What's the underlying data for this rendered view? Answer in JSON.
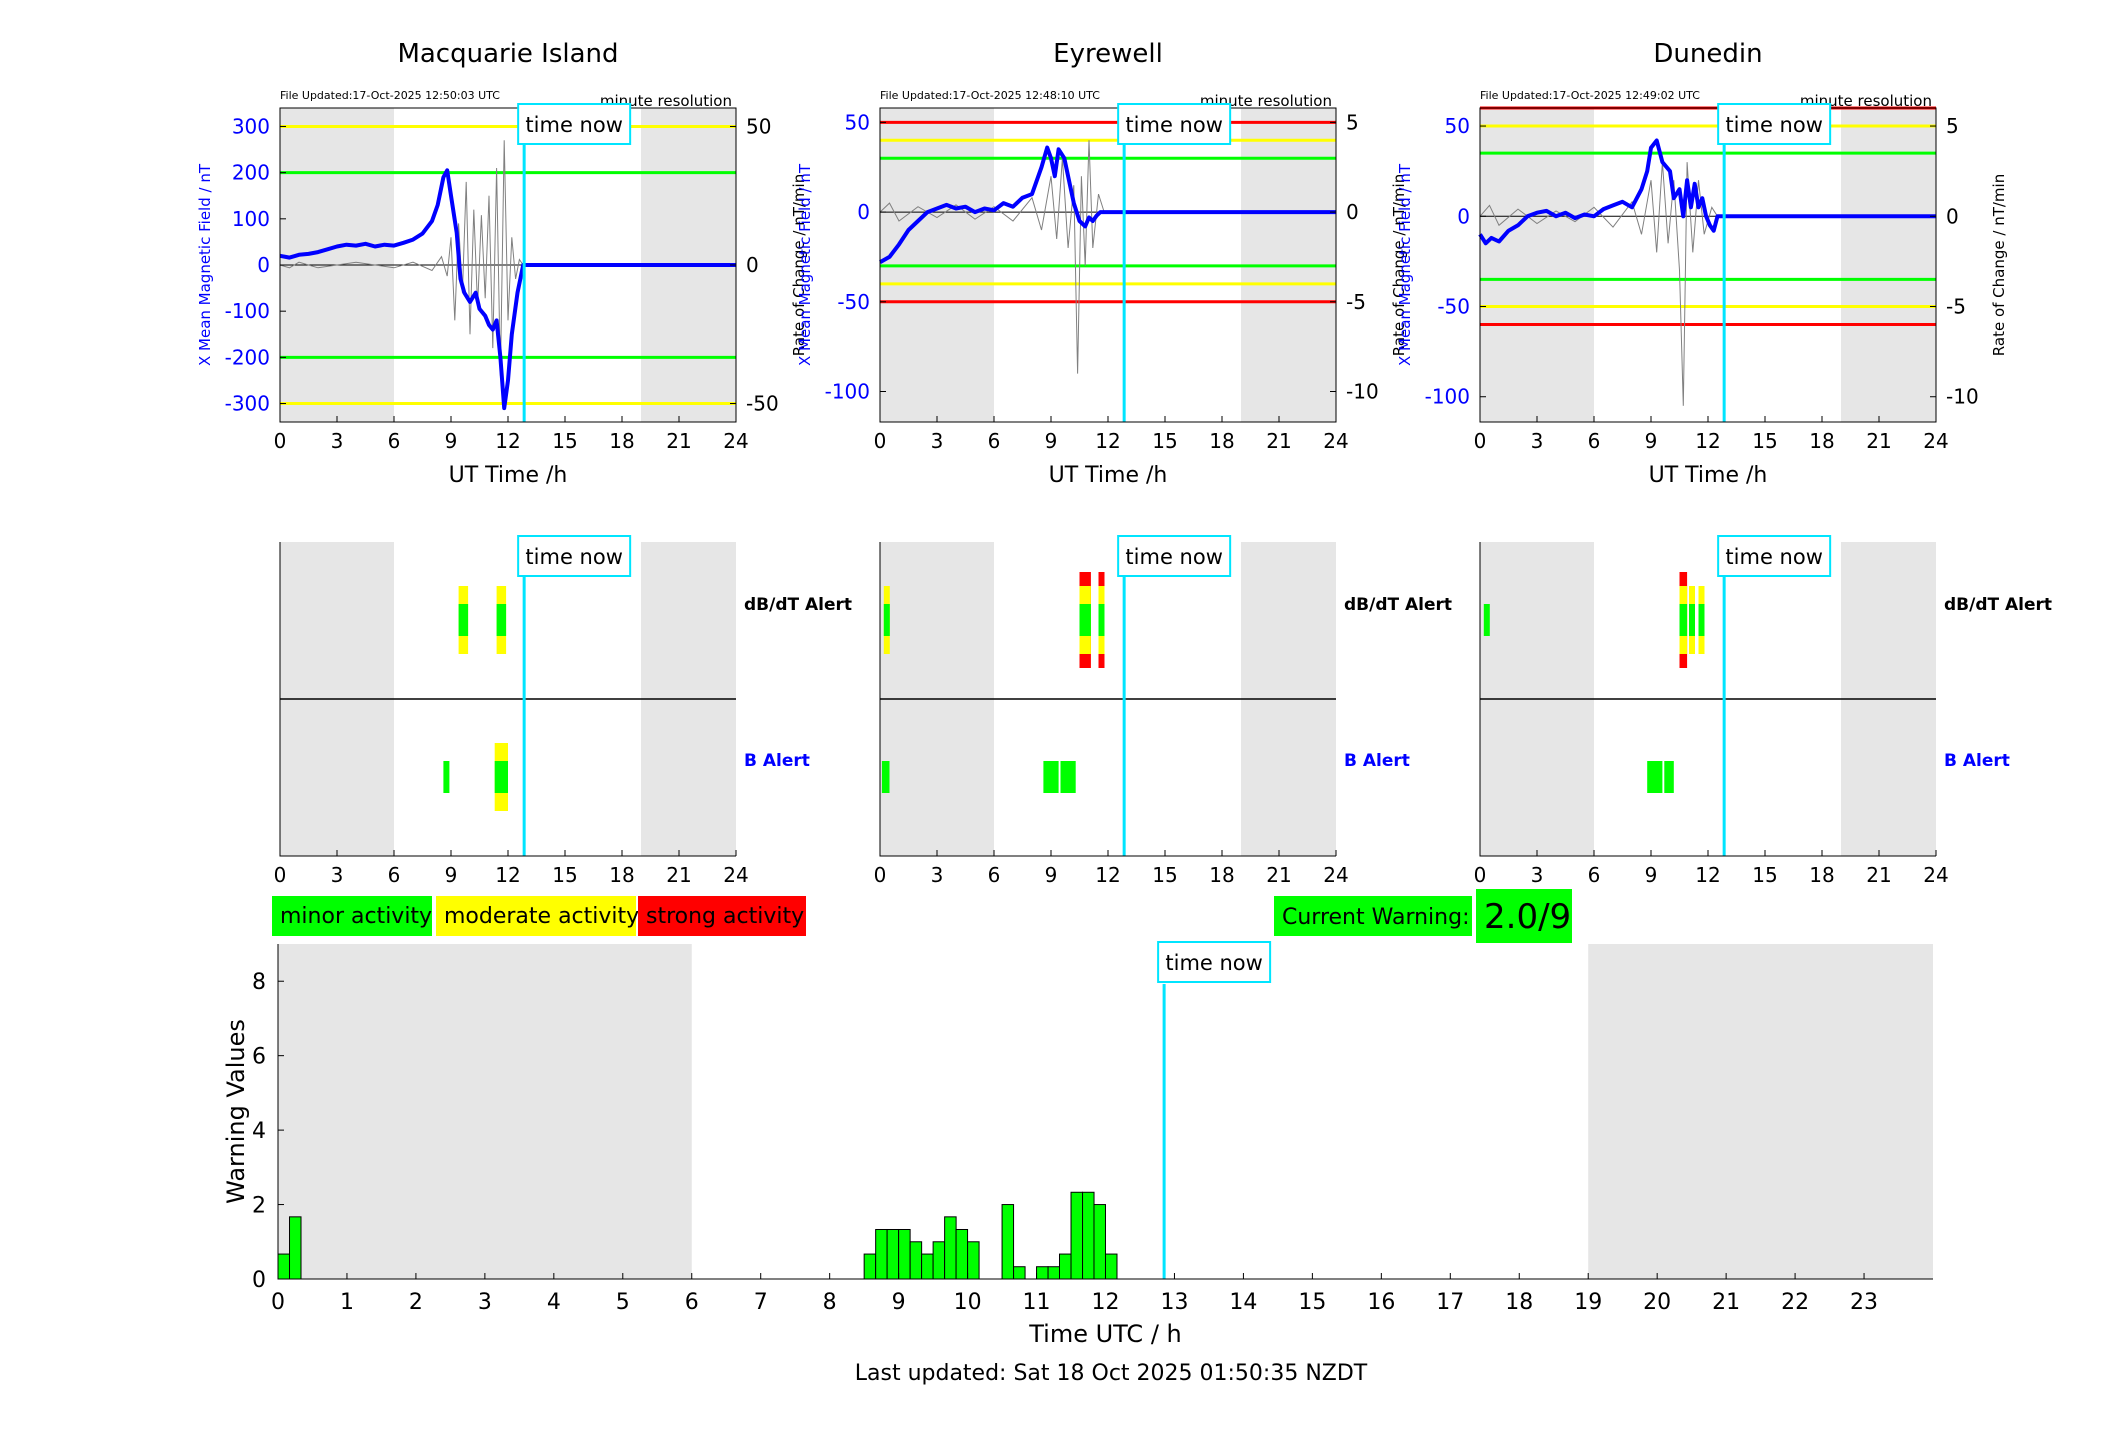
{
  "colors": {
    "blue": "#0000ff",
    "cyan": "#00e5ff",
    "green": "#00ff00",
    "yellow": "#ffff00",
    "red": "#ff0000",
    "shade": "#e6e6e6",
    "trace": "#808080"
  },
  "time_now_label": "time now",
  "dbdt_alert_label": "dB/dT Alert",
  "b_alert_label": "B Alert",
  "time_now_h": 12.85,
  "legend": [
    "minor activity",
    "moderate activity",
    "strong activity"
  ],
  "current_warning": {
    "label": "Current Warning:",
    "value": "2.0/9"
  },
  "footer": "Last updated: Sat 18 Oct 2025 01:50:35 NZDT",
  "stations": [
    {
      "id": "mac",
      "title": "Macquarie Island",
      "file_updated": "File Updated:17-Oct-2025 12:50:03 UTC",
      "resolution": "minute resolution",
      "ylabel_left": "X Mean Magnetic Field / nT",
      "ylabel_right": "Rate of Change / nT/min",
      "xlabel": "UT Time /h",
      "ylim": [
        -340,
        340
      ],
      "yticks": [
        -300,
        -200,
        -100,
        0,
        100,
        200,
        300
      ],
      "y2lim": [
        -56.67,
        56.67
      ],
      "y2ticks": [
        -50,
        0,
        50
      ],
      "thresholds": [
        {
          "value": 300,
          "color": "yellow"
        },
        {
          "value": 200,
          "color": "green"
        },
        {
          "value": -200,
          "color": "green"
        },
        {
          "value": -300,
          "color": "yellow"
        }
      ],
      "b_series": [
        [
          0,
          20
        ],
        [
          0.5,
          16
        ],
        [
          1,
          22
        ],
        [
          1.5,
          24
        ],
        [
          2,
          28
        ],
        [
          2.5,
          34
        ],
        [
          3,
          40
        ],
        [
          3.5,
          44
        ],
        [
          4,
          42
        ],
        [
          4.5,
          46
        ],
        [
          5,
          40
        ],
        [
          5.5,
          44
        ],
        [
          6,
          42
        ],
        [
          6.5,
          48
        ],
        [
          7,
          55
        ],
        [
          7.5,
          68
        ],
        [
          8,
          95
        ],
        [
          8.3,
          130
        ],
        [
          8.6,
          190
        ],
        [
          8.8,
          205
        ],
        [
          9,
          150
        ],
        [
          9.3,
          70
        ],
        [
          9.5,
          -30
        ],
        [
          9.7,
          -60
        ],
        [
          10,
          -80
        ],
        [
          10.3,
          -60
        ],
        [
          10.5,
          -95
        ],
        [
          10.8,
          -110
        ],
        [
          11,
          -130
        ],
        [
          11.2,
          -140
        ],
        [
          11.4,
          -120
        ],
        [
          11.6,
          -200
        ],
        [
          11.8,
          -310
        ],
        [
          12,
          -250
        ],
        [
          12.2,
          -150
        ],
        [
          12.5,
          -60
        ],
        [
          12.8,
          0
        ],
        [
          24,
          0
        ]
      ],
      "dbdt_series": [
        [
          0,
          0
        ],
        [
          0.5,
          -1
        ],
        [
          1,
          1
        ],
        [
          1.5,
          0
        ],
        [
          2,
          -1
        ],
        [
          3,
          0
        ],
        [
          4,
          1
        ],
        [
          5,
          0
        ],
        [
          6,
          -1
        ],
        [
          7,
          1
        ],
        [
          8,
          -2
        ],
        [
          8.5,
          3
        ],
        [
          8.8,
          -4
        ],
        [
          9,
          10
        ],
        [
          9.2,
          -20
        ],
        [
          9.4,
          15
        ],
        [
          9.6,
          -10
        ],
        [
          9.8,
          30
        ],
        [
          10,
          -25
        ],
        [
          10.2,
          20
        ],
        [
          10.4,
          -15
        ],
        [
          10.6,
          18
        ],
        [
          10.8,
          -12
        ],
        [
          11,
          25
        ],
        [
          11.2,
          -30
        ],
        [
          11.4,
          35
        ],
        [
          11.6,
          -40
        ],
        [
          11.8,
          45
        ],
        [
          12,
          -20
        ],
        [
          12.2,
          10
        ],
        [
          12.4,
          -5
        ],
        [
          12.6,
          2
        ],
        [
          12.8,
          0
        ]
      ],
      "dbdt_blocks": [
        {
          "start": 9.4,
          "end": 9.9,
          "level": 2
        },
        {
          "start": 11.4,
          "end": 11.9,
          "level": 2
        }
      ],
      "b_blocks": [
        {
          "start": 8.6,
          "end": 8.9,
          "level": 1
        },
        {
          "start": 11.3,
          "end": 12.0,
          "level": 2
        }
      ]
    },
    {
      "id": "eyr",
      "title": "Eyrewell",
      "file_updated": "File Updated:17-Oct-2025 12:48:10 UTC",
      "resolution": "minute resolution",
      "ylabel_left": "X Mean Magnetic Field / nT",
      "ylabel_right": "Rate of Change / nT/min",
      "xlabel": "UT Time /h",
      "ylim": [
        -117,
        58
      ],
      "yticks": [
        -100,
        -50,
        0,
        50
      ],
      "y2lim": [
        -11.7,
        5.8
      ],
      "y2ticks": [
        -10,
        -5,
        0,
        5
      ],
      "thresholds": [
        {
          "value": 50,
          "color": "red"
        },
        {
          "value": 40,
          "color": "yellow"
        },
        {
          "value": 30,
          "color": "green"
        },
        {
          "value": -30,
          "color": "green"
        },
        {
          "value": -40,
          "color": "yellow"
        },
        {
          "value": -50,
          "color": "red"
        }
      ],
      "b_series": [
        [
          0,
          -28
        ],
        [
          0.5,
          -25
        ],
        [
          1,
          -18
        ],
        [
          1.5,
          -10
        ],
        [
          2,
          -5
        ],
        [
          2.5,
          0
        ],
        [
          3,
          2
        ],
        [
          3.5,
          4
        ],
        [
          4,
          2
        ],
        [
          4.5,
          3
        ],
        [
          5,
          0
        ],
        [
          5.5,
          2
        ],
        [
          6,
          1
        ],
        [
          6.5,
          5
        ],
        [
          7,
          3
        ],
        [
          7.5,
          8
        ],
        [
          8,
          10
        ],
        [
          8.5,
          25
        ],
        [
          8.8,
          36
        ],
        [
          9,
          30
        ],
        [
          9.2,
          20
        ],
        [
          9.4,
          35
        ],
        [
          9.7,
          30
        ],
        [
          10,
          15
        ],
        [
          10.2,
          5
        ],
        [
          10.5,
          -5
        ],
        [
          10.8,
          -8
        ],
        [
          11,
          -3
        ],
        [
          11.2,
          -5
        ],
        [
          11.4,
          -2
        ],
        [
          11.6,
          0
        ],
        [
          24,
          0
        ]
      ],
      "dbdt_series": [
        [
          0,
          0
        ],
        [
          0.5,
          0.5
        ],
        [
          1,
          -0.5
        ],
        [
          2,
          0.3
        ],
        [
          3,
          -0.3
        ],
        [
          4,
          0.4
        ],
        [
          5,
          -0.4
        ],
        [
          6,
          0.3
        ],
        [
          7,
          -0.5
        ],
        [
          8,
          0.8
        ],
        [
          8.5,
          -1
        ],
        [
          9,
          2
        ],
        [
          9.3,
          -1.5
        ],
        [
          9.6,
          3
        ],
        [
          9.9,
          -2
        ],
        [
          10.2,
          1.5
        ],
        [
          10.4,
          -9
        ],
        [
          10.6,
          2
        ],
        [
          10.8,
          -3
        ],
        [
          11,
          4
        ],
        [
          11.2,
          -2
        ],
        [
          11.5,
          1
        ],
        [
          11.8,
          0
        ]
      ],
      "dbdt_blocks": [
        {
          "start": 0.2,
          "end": 0.5,
          "level": 2
        },
        {
          "start": 10.5,
          "end": 11.1,
          "level": 3
        },
        {
          "start": 11.5,
          "end": 11.8,
          "level": 3
        }
      ],
      "b_blocks": [
        {
          "start": 0.1,
          "end": 0.5,
          "level": 1
        },
        {
          "start": 8.6,
          "end": 9.4,
          "level": 1
        },
        {
          "start": 9.5,
          "end": 10.3,
          "level": 1
        }
      ]
    },
    {
      "id": "dun",
      "title": "Dunedin",
      "file_updated": "File Updated:17-Oct-2025 12:49:02 UTC",
      "resolution": "minute resolution",
      "ylabel_left": "X Mean Magnetic Field / nT",
      "ylabel_right": "Rate of Change / nT/min",
      "xlabel": "UT Time /h",
      "ylim": [
        -114,
        60
      ],
      "yticks": [
        -100,
        -50,
        0,
        50
      ],
      "y2lim": [
        -11.4,
        6.0
      ],
      "y2ticks": [
        -10,
        -5,
        0,
        5
      ],
      "thresholds": [
        {
          "value": 60,
          "color": "red"
        },
        {
          "value": 50,
          "color": "yellow"
        },
        {
          "value": 35,
          "color": "green"
        },
        {
          "value": -35,
          "color": "green"
        },
        {
          "value": -50,
          "color": "yellow"
        },
        {
          "value": -60,
          "color": "red"
        }
      ],
      "b_series": [
        [
          0,
          -10
        ],
        [
          0.3,
          -15
        ],
        [
          0.6,
          -12
        ],
        [
          1,
          -14
        ],
        [
          1.5,
          -8
        ],
        [
          2,
          -5
        ],
        [
          2.5,
          0
        ],
        [
          3,
          2
        ],
        [
          3.5,
          3
        ],
        [
          4,
          0
        ],
        [
          4.5,
          2
        ],
        [
          5,
          -1
        ],
        [
          5.5,
          1
        ],
        [
          6,
          0
        ],
        [
          6.5,
          4
        ],
        [
          7,
          6
        ],
        [
          7.5,
          8
        ],
        [
          8,
          5
        ],
        [
          8.5,
          15
        ],
        [
          8.8,
          25
        ],
        [
          9,
          38
        ],
        [
          9.3,
          42
        ],
        [
          9.6,
          30
        ],
        [
          10,
          25
        ],
        [
          10.2,
          10
        ],
        [
          10.5,
          15
        ],
        [
          10.7,
          0
        ],
        [
          10.9,
          20
        ],
        [
          11.1,
          5
        ],
        [
          11.3,
          18
        ],
        [
          11.5,
          5
        ],
        [
          11.7,
          10
        ],
        [
          11.9,
          0
        ],
        [
          12.1,
          -5
        ],
        [
          12.3,
          -8
        ],
        [
          12.5,
          0
        ],
        [
          24,
          0
        ]
      ],
      "dbdt_series": [
        [
          0,
          0
        ],
        [
          0.5,
          0.6
        ],
        [
          1,
          -0.5
        ],
        [
          2,
          0.4
        ],
        [
          3,
          -0.4
        ],
        [
          4,
          0.3
        ],
        [
          5,
          -0.3
        ],
        [
          6,
          0.5
        ],
        [
          7,
          -0.6
        ],
        [
          8,
          0.8
        ],
        [
          8.5,
          -1
        ],
        [
          9,
          2
        ],
        [
          9.3,
          -2
        ],
        [
          9.6,
          3
        ],
        [
          9.9,
          -1.5
        ],
        [
          10.2,
          2
        ],
        [
          10.5,
          -3
        ],
        [
          10.7,
          -10.5
        ],
        [
          10.9,
          3
        ],
        [
          11.2,
          -2
        ],
        [
          11.5,
          2
        ],
        [
          11.8,
          -1
        ],
        [
          12.2,
          0.5
        ],
        [
          12.5,
          0
        ]
      ],
      "dbdt_blocks": [
        {
          "start": 0.2,
          "end": 0.5,
          "level": 1
        },
        {
          "start": 10.5,
          "end": 10.9,
          "level": 3
        },
        {
          "start": 11.0,
          "end": 11.3,
          "level": 2
        },
        {
          "start": 11.5,
          "end": 11.8,
          "level": 2
        }
      ],
      "b_blocks": [
        {
          "start": 8.8,
          "end": 9.6,
          "level": 1
        },
        {
          "start": 9.7,
          "end": 10.2,
          "level": 1
        }
      ]
    }
  ],
  "chart_data": {
    "type": "bar",
    "title": "",
    "xlabel": "Time UTC / h",
    "ylabel": "Warning Values",
    "xlim": [
      0,
      24
    ],
    "ylim": [
      0,
      9
    ],
    "xticks": [
      0,
      1,
      2,
      3,
      4,
      5,
      6,
      7,
      8,
      9,
      10,
      11,
      12,
      13,
      14,
      15,
      16,
      17,
      18,
      19,
      20,
      21,
      22,
      23
    ],
    "yticks": [
      0,
      2,
      4,
      6,
      8
    ],
    "shaded_ranges": [
      [
        0,
        6
      ],
      [
        19,
        24
      ]
    ],
    "bar_width_h": 0.1667,
    "bars": [
      [
        0.0,
        0.67
      ],
      [
        0.167,
        1.67
      ],
      [
        8.5,
        0.67
      ],
      [
        8.667,
        1.33
      ],
      [
        8.833,
        1.33
      ],
      [
        9.0,
        1.33
      ],
      [
        9.167,
        1.0
      ],
      [
        9.333,
        0.67
      ],
      [
        9.5,
        1.0
      ],
      [
        9.667,
        1.67
      ],
      [
        9.833,
        1.33
      ],
      [
        10.0,
        1.0
      ],
      [
        10.5,
        2.0
      ],
      [
        10.667,
        0.33
      ],
      [
        11.0,
        0.33
      ],
      [
        11.167,
        0.33
      ],
      [
        11.333,
        0.67
      ],
      [
        11.5,
        2.33
      ],
      [
        11.667,
        2.33
      ],
      [
        11.833,
        2.0
      ],
      [
        12.0,
        0.67
      ]
    ]
  }
}
